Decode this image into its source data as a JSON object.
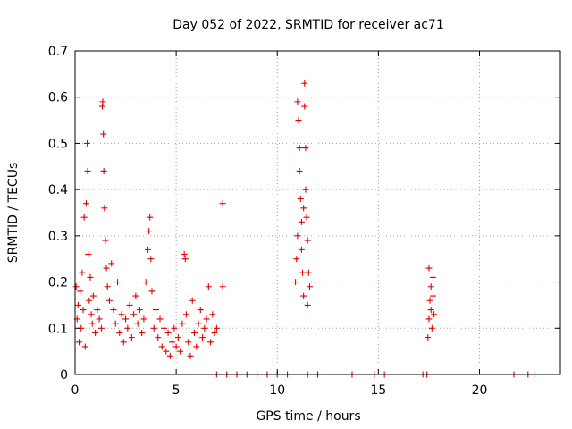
{
  "chart_data": {
    "type": "scatter",
    "title": "Day 052 of 2022, SRMTID for receiver ac71",
    "xlabel": "GPS time / hours",
    "ylabel": "SRMTID / TECUs",
    "xlim": [
      0,
      24
    ],
    "ylim": [
      0,
      0.7
    ],
    "grid": true,
    "xticks": [
      0,
      5,
      10,
      15,
      20
    ],
    "yticks": [
      0,
      0.1,
      0.2,
      0.3,
      0.4,
      0.5,
      0.6,
      0.7
    ],
    "marker": "+",
    "marker_color": "#e00000",
    "series": [
      {
        "name": "SRMTID",
        "points": [
          [
            0.05,
            0.19
          ],
          [
            0.1,
            0.12
          ],
          [
            0.15,
            0.15
          ],
          [
            0.2,
            0.07
          ],
          [
            0.25,
            0.18
          ],
          [
            0.3,
            0.1
          ],
          [
            0.35,
            0.22
          ],
          [
            0.4,
            0.14
          ],
          [
            0.45,
            0.34
          ],
          [
            0.5,
            0.06
          ],
          [
            0.55,
            0.37
          ],
          [
            0.6,
            0.5
          ],
          [
            0.62,
            0.44
          ],
          [
            0.65,
            0.26
          ],
          [
            0.7,
            0.16
          ],
          [
            0.75,
            0.21
          ],
          [
            0.8,
            0.13
          ],
          [
            0.85,
            0.11
          ],
          [
            0.9,
            0.17
          ],
          [
            1.0,
            0.09
          ],
          [
            1.1,
            0.14
          ],
          [
            1.2,
            0.12
          ],
          [
            1.3,
            0.1
          ],
          [
            1.35,
            0.58
          ],
          [
            1.37,
            0.59
          ],
          [
            1.4,
            0.52
          ],
          [
            1.42,
            0.44
          ],
          [
            1.45,
            0.36
          ],
          [
            1.5,
            0.29
          ],
          [
            1.55,
            0.23
          ],
          [
            1.6,
            0.19
          ],
          [
            1.7,
            0.16
          ],
          [
            1.8,
            0.24
          ],
          [
            1.9,
            0.14
          ],
          [
            2.0,
            0.11
          ],
          [
            2.1,
            0.2
          ],
          [
            2.2,
            0.09
          ],
          [
            2.3,
            0.13
          ],
          [
            2.4,
            0.07
          ],
          [
            2.5,
            0.12
          ],
          [
            2.6,
            0.1
          ],
          [
            2.7,
            0.15
          ],
          [
            2.8,
            0.08
          ],
          [
            2.9,
            0.13
          ],
          [
            3.0,
            0.17
          ],
          [
            3.1,
            0.11
          ],
          [
            3.2,
            0.14
          ],
          [
            3.3,
            0.09
          ],
          [
            3.4,
            0.12
          ],
          [
            3.5,
            0.2
          ],
          [
            3.6,
            0.27
          ],
          [
            3.65,
            0.31
          ],
          [
            3.7,
            0.34
          ],
          [
            3.75,
            0.25
          ],
          [
            3.8,
            0.18
          ],
          [
            3.9,
            0.1
          ],
          [
            4.0,
            0.14
          ],
          [
            4.1,
            0.08
          ],
          [
            4.2,
            0.12
          ],
          [
            4.3,
            0.06
          ],
          [
            4.4,
            0.1
          ],
          [
            4.5,
            0.05
          ],
          [
            4.6,
            0.09
          ],
          [
            4.7,
            0.04
          ],
          [
            4.8,
            0.07
          ],
          [
            4.9,
            0.1
          ],
          [
            5.0,
            0.06
          ],
          [
            5.1,
            0.08
          ],
          [
            5.2,
            0.05
          ],
          [
            5.3,
            0.11
          ],
          [
            5.4,
            0.26
          ],
          [
            5.45,
            0.25
          ],
          [
            5.5,
            0.13
          ],
          [
            5.6,
            0.07
          ],
          [
            5.7,
            0.04
          ],
          [
            5.8,
            0.16
          ],
          [
            5.9,
            0.09
          ],
          [
            6.0,
            0.06
          ],
          [
            6.1,
            0.11
          ],
          [
            6.2,
            0.14
          ],
          [
            6.3,
            0.08
          ],
          [
            6.4,
            0.1
          ],
          [
            6.5,
            0.12
          ],
          [
            6.6,
            0.19
          ],
          [
            6.7,
            0.07
          ],
          [
            6.8,
            0.13
          ],
          [
            6.9,
            0.09
          ],
          [
            7.0,
            0.1
          ],
          [
            7.3,
            0.37
          ],
          [
            7.3,
            0.19
          ],
          [
            7.0,
            0.0
          ],
          [
            7.5,
            0.0
          ],
          [
            8.0,
            0.0
          ],
          [
            8.5,
            0.0
          ],
          [
            9.0,
            0.0
          ],
          [
            9.5,
            0.0
          ],
          [
            10.0,
            0.0
          ],
          [
            10.5,
            0.0
          ],
          [
            11.5,
            0.0
          ],
          [
            12.0,
            0.0
          ],
          [
            10.9,
            0.2
          ],
          [
            10.95,
            0.25
          ],
          [
            11.0,
            0.3
          ],
          [
            11.0,
            0.59
          ],
          [
            11.05,
            0.55
          ],
          [
            11.1,
            0.49
          ],
          [
            11.1,
            0.44
          ],
          [
            11.15,
            0.38
          ],
          [
            11.2,
            0.33
          ],
          [
            11.2,
            0.27
          ],
          [
            11.25,
            0.22
          ],
          [
            11.3,
            0.17
          ],
          [
            11.3,
            0.36
          ],
          [
            11.35,
            0.63
          ],
          [
            11.35,
            0.58
          ],
          [
            11.4,
            0.49
          ],
          [
            11.4,
            0.4
          ],
          [
            11.45,
            0.34
          ],
          [
            11.5,
            0.29
          ],
          [
            11.5,
            0.15
          ],
          [
            11.55,
            0.22
          ],
          [
            11.6,
            0.19
          ],
          [
            13.7,
            0.0
          ],
          [
            14.8,
            0.0
          ],
          [
            15.3,
            0.0
          ],
          [
            17.2,
            0.0
          ],
          [
            17.4,
            0.0
          ],
          [
            21.7,
            0.0
          ],
          [
            22.4,
            0.0
          ],
          [
            22.7,
            0.0
          ],
          [
            17.45,
            0.08
          ],
          [
            17.5,
            0.12
          ],
          [
            17.5,
            0.23
          ],
          [
            17.55,
            0.16
          ],
          [
            17.6,
            0.19
          ],
          [
            17.6,
            0.14
          ],
          [
            17.65,
            0.1
          ],
          [
            17.7,
            0.21
          ],
          [
            17.7,
            0.17
          ],
          [
            17.75,
            0.13
          ]
        ]
      }
    ]
  }
}
